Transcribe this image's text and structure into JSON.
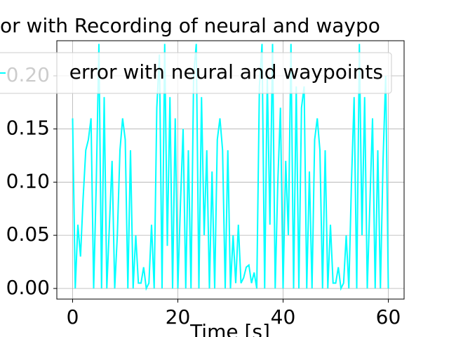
{
  "chart_data": {
    "type": "line",
    "title": "or with Recording of neural and waypo",
    "x_label": "Time [s]",
    "x": [
      0,
      0.5,
      1,
      1.5,
      2,
      2.5,
      3,
      3.5,
      4,
      4.5,
      5,
      5.5,
      6,
      6.5,
      7,
      7.5,
      8,
      8.5,
      9,
      9.5,
      10,
      10.5,
      11,
      11.5,
      12,
      12.5,
      13,
      13.5,
      14,
      14.5,
      15,
      15.5,
      16,
      16.5,
      17,
      17.5,
      18,
      18.5,
      19,
      19.5,
      20,
      20.5,
      21,
      21.5,
      22,
      22.5,
      23,
      23.5,
      24,
      24.5,
      25,
      25.5,
      26,
      26.5,
      27,
      27.5,
      28,
      28.5,
      29,
      29.5,
      30,
      30.5,
      31,
      31.5,
      32,
      32.5,
      33,
      33.5,
      34,
      34.5,
      35,
      35.5,
      36,
      36.5,
      37,
      37.5,
      38,
      38.5,
      39,
      39.5,
      40,
      40.5,
      41,
      41.5,
      42,
      42.5,
      43,
      43.5,
      44,
      44.5,
      45,
      45.5,
      46,
      46.5,
      47,
      47.5,
      48,
      48.5,
      49,
      49.5,
      50,
      50.5,
      51,
      51.5,
      52,
      52.5,
      53,
      53.5,
      54,
      54.5,
      55,
      55.5,
      56,
      56.5,
      57,
      57.5,
      58,
      58.5,
      59,
      59.5,
      60
    ],
    "series": [
      {
        "name": "error with neural and waypoints",
        "color": "#00ffff",
        "values": [
          0.16,
          0.0,
          0.06,
          0.03,
          0.085,
          0.13,
          0.14,
          0.16,
          0.0,
          0.1,
          0.23,
          0.0,
          0.18,
          0.0,
          0.06,
          0.12,
          0.0,
          0.05,
          0.13,
          0.16,
          0.14,
          0.0,
          0.13,
          0.0,
          0.05,
          0.005,
          0.005,
          0.02,
          0.0,
          0.005,
          0.06,
          0.0,
          0.17,
          0.22,
          0.0,
          0.23,
          0.04,
          0.18,
          0.0,
          0.16,
          0.0,
          0.08,
          0.15,
          0.0,
          0.13,
          0.0,
          0.2,
          0.23,
          0.0,
          0.18,
          0.05,
          0.13,
          0.0,
          0.11,
          0.0,
          0.14,
          0.16,
          0.13,
          0.0,
          0.13,
          0.0,
          0.05,
          0.005,
          0.06,
          0.005,
          0.01,
          0.02,
          0.022,
          0.005,
          0.015,
          0.0,
          0.19,
          0.23,
          0.0,
          0.2,
          0.06,
          0.23,
          0.0,
          0.1,
          0.17,
          0.0,
          0.12,
          0.05,
          0.23,
          0.0,
          0.19,
          0.0,
          0.17,
          0.19,
          0.0,
          0.11,
          0.0,
          0.14,
          0.16,
          0.13,
          0.0,
          0.13,
          0.0,
          0.06,
          0.005,
          0.005,
          0.02,
          0.0,
          0.005,
          0.05,
          0.0,
          0.1,
          0.18,
          0.0,
          0.23,
          0.05,
          0.18,
          0.0,
          0.08,
          0.16,
          0.0,
          0.13,
          0.0,
          0.12,
          0.2,
          0.0
        ]
      }
    ],
    "xlim": [
      -3,
      63
    ],
    "xticks": [
      0,
      20,
      40,
      60
    ],
    "ylim": [
      -0.01,
      0.233
    ],
    "yticks": [
      {
        "value": 0,
        "label": "0.00"
      },
      {
        "value": 0.05,
        "label": "0.05"
      },
      {
        "value": 0.1,
        "label": "0.10"
      },
      {
        "value": 0.15,
        "label": "0.15"
      },
      {
        "value": 0.2,
        "label": "0.20"
      }
    ],
    "grid": true,
    "legend": "upper center"
  }
}
